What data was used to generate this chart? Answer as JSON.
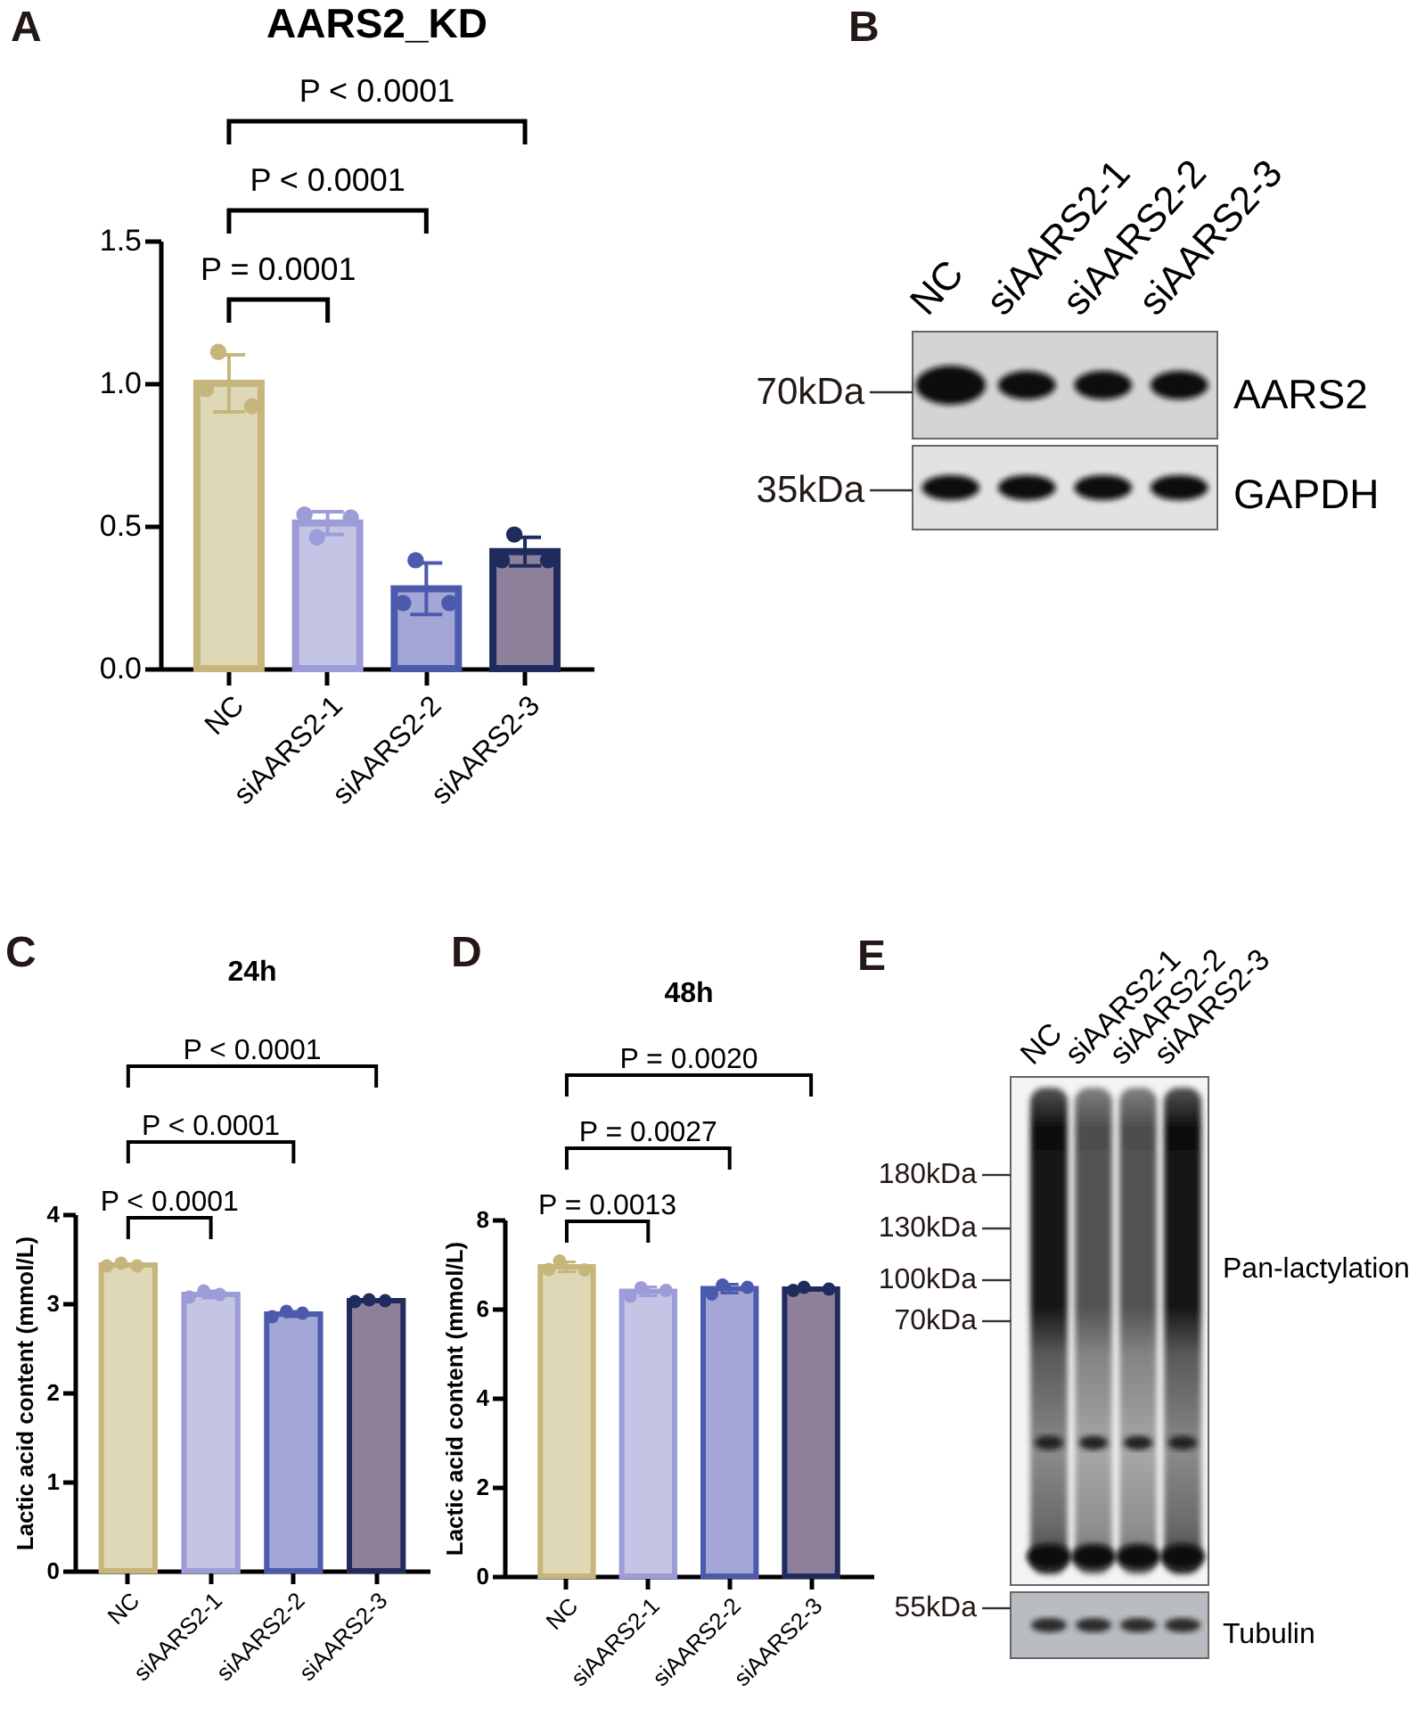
{
  "chart_data": [
    {
      "type": "bar",
      "title": "AARS2_KD",
      "categories": [
        "NC",
        "siAARS2-1",
        "siAARS2-2",
        "siAARS2-3"
      ],
      "series": [
        {
          "type": "bar",
          "colors": [
            "#ded8b6",
            "#c4c4e4",
            "#a4a7d6",
            "#8e7f9b"
          ],
          "values": [
            1.0,
            0.51,
            0.28,
            0.41
          ],
          "errors": [
            0.1,
            0.04,
            0.09,
            0.05
          ]
        },
        {
          "type": "scatter",
          "x": [
            "NC",
            "siAARS2-1",
            "siAARS2-2",
            "siAARS2-3"
          ],
          "values": [
            0.98,
            0.54,
            0.23,
            0.38
          ],
          "colors": [
            "#c6b67c",
            "#9c9dd8",
            "#4c5aae",
            "#1f2b5d"
          ]
        },
        {
          "type": "scatter",
          "x": [
            "NC",
            "siAARS2-1",
            "siAARS2-2",
            "siAARS2-3"
          ],
          "values": [
            1.11,
            0.46,
            0.38,
            0.47
          ],
          "colors": [
            "#c6b67c",
            "#9c9dd8",
            "#4c5aae",
            "#1f2b5d"
          ]
        },
        {
          "type": "scatter",
          "x": [
            "NC",
            "siAARS2-1",
            "siAARS2-2",
            "siAARS2-3"
          ],
          "values": [
            0.92,
            0.53,
            0.23,
            0.38
          ],
          "colors": [
            "#c6b67c",
            "#9c9dd8",
            "#4c5aae",
            "#1f2b5d"
          ]
        }
      ],
      "ylim": [
        0,
        1.5
      ],
      "yticks": [
        {
          "value": 0,
          "label": "0.0"
        },
        {
          "value": 0.5,
          "label": "0.5"
        },
        {
          "value": 1,
          "label": "1.0"
        },
        {
          "value": 1.5,
          "label": "1.5"
        }
      ],
      "marker": "circle",
      "grid": false,
      "annotations": [
        "A",
        "P < 0.0001",
        "P < 0.0001",
        "P = 0.0001"
      ]
    },
    {
      "type": "other",
      "categories": [
        "NC",
        "siAARS2-1",
        "siAARS2-2",
        "siAARS2-3"
      ],
      "y2_categories": [
        "AARS2",
        "GAPDH"
      ],
      "annotations": [
        "B",
        "70kDa",
        "35kDa"
      ]
    },
    {
      "type": "bar",
      "title": "24h",
      "ylabel": "Lactic acid content (mmol/L)",
      "categories": [
        "NC",
        "siAARS2-1",
        "siAARS2-2",
        "siAARS2-3"
      ],
      "series": [
        {
          "type": "bar",
          "colors": [
            "#ded8b6",
            "#c4c4e4",
            "#a4a7d6",
            "#8e7f9b"
          ],
          "values": [
            3.43,
            3.1,
            2.88,
            3.03
          ],
          "errors": [
            null,
            0.04,
            0.03,
            null
          ]
        },
        {
          "type": "scatter",
          "x": [
            "NC",
            "siAARS2-1",
            "siAARS2-2",
            "siAARS2-3"
          ],
          "values": [
            3.42,
            3.07,
            2.85,
            3.02
          ],
          "colors": [
            "#c6b67c",
            "#9c9dd8",
            "#4c5aae",
            "#1f2b5d"
          ]
        },
        {
          "type": "scatter",
          "x": [
            "NC",
            "siAARS2-1",
            "siAARS2-2",
            "siAARS2-3"
          ],
          "values": [
            3.45,
            3.14,
            2.91,
            3.04
          ],
          "colors": [
            "#c6b67c",
            "#9c9dd8",
            "#4c5aae",
            "#1f2b5d"
          ]
        },
        {
          "type": "scatter",
          "x": [
            "NC",
            "siAARS2-1",
            "siAARS2-2",
            "siAARS2-3"
          ],
          "values": [
            3.42,
            3.1,
            2.89,
            3.03
          ],
          "colors": [
            "#c6b67c",
            "#9c9dd8",
            "#4c5aae",
            "#1f2b5d"
          ]
        }
      ],
      "ylim": [
        0,
        4
      ],
      "yticks": [
        0,
        1,
        2,
        3,
        4
      ],
      "marker": "circle",
      "grid": false,
      "annotations": [
        "C",
        "P < 0.0001",
        "P < 0.0001",
        "P < 0.0001"
      ]
    },
    {
      "type": "bar",
      "title": "48h",
      "ylabel": "Lactic acid content (mmol/L)",
      "categories": [
        "NC",
        "siAARS2-1",
        "siAARS2-2",
        "siAARS2-3"
      ],
      "series": [
        {
          "type": "bar",
          "colors": [
            "#ded8b6",
            "#c4c4e4",
            "#a4a7d6",
            "#8e7f9b"
          ],
          "values": [
            6.94,
            6.39,
            6.45,
            6.44
          ],
          "errors": [
            0.11,
            0.1,
            0.1,
            null
          ]
        },
        {
          "type": "scatter",
          "x": [
            "NC",
            "siAARS2-1",
            "siAARS2-2",
            "siAARS2-3"
          ],
          "values": [
            6.88,
            6.28,
            6.33,
            6.41
          ],
          "colors": [
            "#c6b67c",
            "#9c9dd8",
            "#4c5aae",
            "#1f2b5d"
          ]
        },
        {
          "type": "scatter",
          "x": [
            "NC",
            "siAARS2-1",
            "siAARS2-2",
            "siAARS2-3"
          ],
          "values": [
            7.07,
            6.47,
            6.53,
            6.48
          ],
          "colors": [
            "#c6b67c",
            "#9c9dd8",
            "#4c5aae",
            "#1f2b5d"
          ]
        },
        {
          "type": "scatter",
          "x": [
            "NC",
            "siAARS2-1",
            "siAARS2-2",
            "siAARS2-3"
          ],
          "values": [
            6.87,
            6.41,
            6.48,
            6.44
          ],
          "colors": [
            "#c6b67c",
            "#9c9dd8",
            "#4c5aae",
            "#1f2b5d"
          ]
        }
      ],
      "ylim": [
        0,
        8
      ],
      "yticks": [
        0,
        2,
        4,
        6,
        8
      ],
      "marker": "circle",
      "grid": false,
      "annotations": [
        "D",
        "P = 0.0020",
        "P = 0.0027",
        "P = 0.0013"
      ]
    },
    {
      "type": "other",
      "categories": [
        "NC",
        "siAARS2-1",
        "siAARS2-2",
        "siAARS2-3"
      ],
      "y2_categories": [
        "Pan-lactylation",
        "Tubulin"
      ],
      "annotations": [
        "E",
        "180kDa",
        "130kDa",
        "100kDa",
        "70kDa",
        "55kDa"
      ]
    }
  ]
}
